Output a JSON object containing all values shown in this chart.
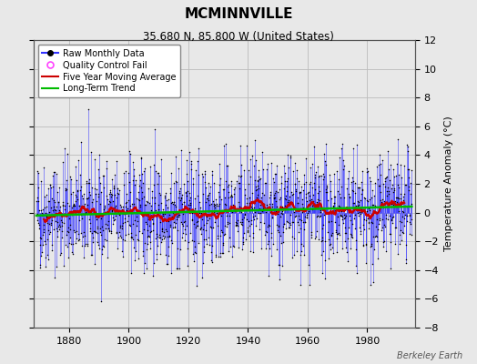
{
  "title": "MCMINNVILLE",
  "subtitle": "35.680 N, 85.800 W (United States)",
  "ylabel": "Temperature Anomaly (°C)",
  "attribution": "Berkeley Earth",
  "xlim": [
    1868,
    1996
  ],
  "ylim": [
    -8,
    12
  ],
  "yticks": [
    -8,
    -6,
    -4,
    -2,
    0,
    2,
    4,
    6,
    8,
    10,
    12
  ],
  "xticks": [
    1880,
    1900,
    1920,
    1940,
    1960,
    1980
  ],
  "raw_color": "#3333ff",
  "ma_color": "#cc0000",
  "trend_color": "#00bb00",
  "qc_color": "#ff44ff",
  "dot_color": "#000000",
  "background_color": "#e8e8e8",
  "grid_color": "#bbbbbb",
  "seed": 42,
  "n_years": 126,
  "start_year": 1869,
  "title_fontsize": 11,
  "subtitle_fontsize": 8.5,
  "legend_fontsize": 7,
  "tick_fontsize": 8,
  "ylabel_fontsize": 8
}
